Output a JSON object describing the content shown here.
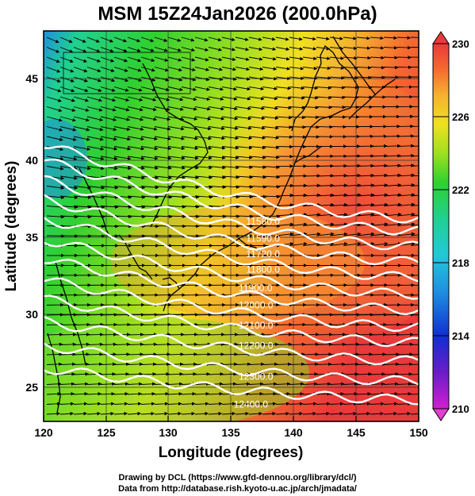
{
  "title": "MSM 15Z24Jan2026 (200.0hPa)",
  "xlabel": "Longitude (degrees)",
  "ylabel": "Latitude  (degrees)",
  "x_ticks": [
    "120",
    "125",
    "130",
    "135",
    "140",
    "145",
    "150"
  ],
  "y_ticks": [
    "25",
    "30",
    "35",
    "40",
    "45"
  ],
  "colorbar": {
    "ticks": [
      "230",
      "226",
      "222",
      "218",
      "214",
      "210"
    ],
    "range": [
      210,
      230
    ],
    "colors": [
      "#d020d0",
      "#6a1cc8",
      "#1030d0",
      "#1f8fe0",
      "#22c8d8",
      "#20d090",
      "#30d030",
      "#9ee020",
      "#f0e020",
      "#f5b030",
      "#f56a30",
      "#e83a3a"
    ]
  },
  "contours": [
    {
      "label": "11580.0",
      "lat_east": 35.5
    },
    {
      "label": "11640.0",
      "lat_east": 34.7
    },
    {
      "label": "11700.0",
      "lat_east": 33.7
    },
    {
      "label": "11760.0",
      "lat_east": 32.7
    },
    {
      "label": "11820.0",
      "lat_east": 31.7
    },
    {
      "label": "11880.0",
      "lat_east": 30.6
    },
    {
      "label": "11940.0",
      "lat_east": 29.6
    },
    {
      "label": "12000.0",
      "lat_east": 28.5
    },
    {
      "label": "12060.0",
      "lat_east": 27.5
    },
    {
      "label": "12120.0",
      "lat_east": 26.3
    },
    {
      "label": "12180.0",
      "lat_east": 25.0
    },
    {
      "label": "12240.0",
      "lat_east": 23.8
    }
  ],
  "visible_contour_labels": [
    "11580.0",
    "11590.0",
    "11720.0",
    "11800.0",
    "11900.0",
    "12000.0",
    "12100.0",
    "12200.0",
    "12300.0",
    "12400.0"
  ],
  "credit_line1": "Drawing by DCL (https://www.gfd-dennou.org/library/dcl/)",
  "credit_line2": "Data from http://database.rish.kyoto-u.ac.jp/arch/jmadata/"
}
